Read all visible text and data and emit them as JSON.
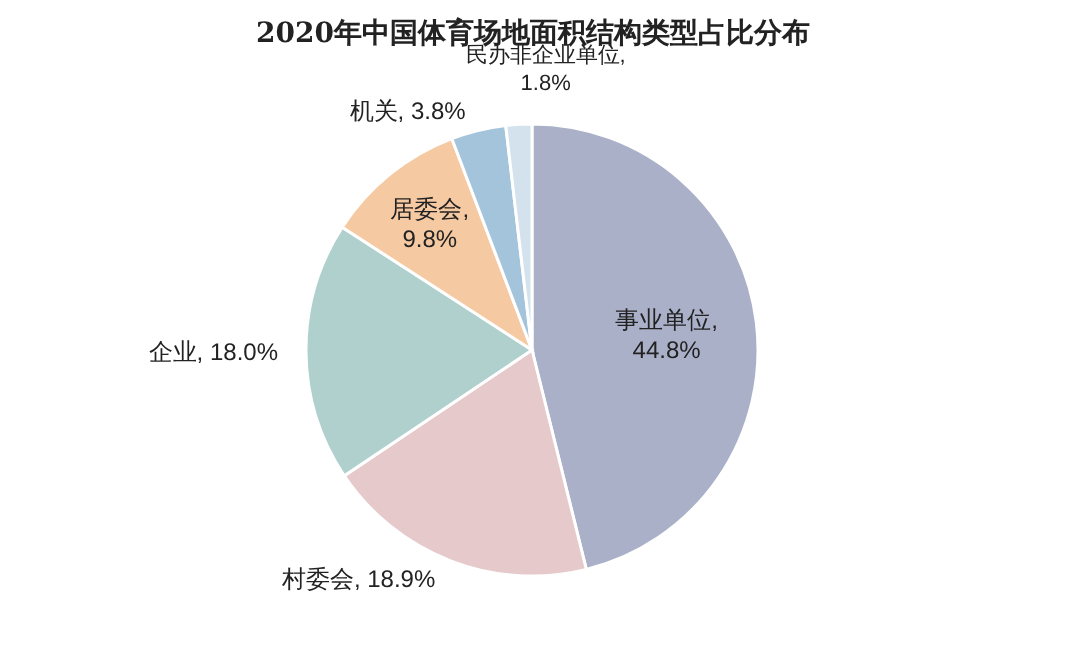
{
  "chart_data": {
    "type": "pie",
    "title": "2020年中国体育场地面积结构类型占比分布",
    "categories": [
      "事业单位",
      "村委会",
      "企业",
      "居委会",
      "机关",
      "民办非企业单位"
    ],
    "values": [
      44.8,
      18.9,
      18.0,
      9.8,
      3.8,
      1.8
    ],
    "colors": [
      "#aab0c8",
      "#e6c9cb",
      "#afd0cd",
      "#f5c9a1",
      "#a4c4dc",
      "#d3e2ec"
    ],
    "value_labels": [
      ", 44.8%",
      ", 18.9%",
      ", 18.0%",
      ", 9.8%",
      ", 3.8%",
      ", 1.8%"
    ]
  }
}
